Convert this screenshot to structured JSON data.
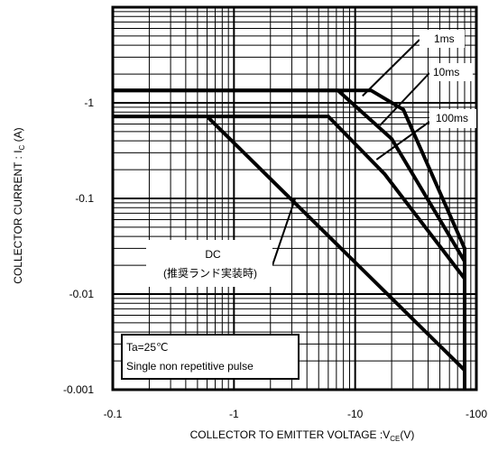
{
  "chart_data": {
    "type": "line",
    "x_scale": "log",
    "y_scale": "log",
    "xlim": [
      -0.1,
      -100
    ],
    "ylim": [
      -0.001,
      -10
    ],
    "x_ticks": [
      -0.1,
      -1,
      -10,
      -100
    ],
    "x_tick_labels": [
      "-0.1",
      "-1",
      "-10",
      "-100"
    ],
    "y_ticks": [
      -0.001,
      -0.01,
      -0.1,
      -1
    ],
    "y_tick_labels": [
      "-0.001",
      "-0.01",
      "-0.1",
      "-1"
    ],
    "xlabel_main": "COLLECTOR TO EMITTER VOLTAGE :V",
    "xlabel_sub": "CE",
    "xlabel_tail": "(V)",
    "ylabel_main": "COLLECTOR CURRENT : I",
    "ylabel_sub": "C",
    "ylabel_tail": " (A)",
    "grid": true,
    "series": [
      {
        "name": "1ms",
        "points": [
          [
            -0.1,
            -1.35
          ],
          [
            -13.5,
            -1.35
          ],
          [
            -25,
            -0.85
          ],
          [
            -80,
            -0.03
          ],
          [
            -80,
            -0.001
          ]
        ]
      },
      {
        "name": "10ms",
        "points": [
          [
            -0.1,
            -1.35
          ],
          [
            -7.2,
            -1.35
          ],
          [
            -20,
            -0.42
          ],
          [
            -80,
            -0.022
          ]
        ]
      },
      {
        "name": "100ms",
        "points": [
          [
            -0.1,
            -0.72
          ],
          [
            -6.0,
            -0.72
          ],
          [
            -17.5,
            -0.18
          ],
          [
            -80,
            -0.0145
          ]
        ]
      },
      {
        "name": "DC\n(推奨ランド実装時)",
        "points": [
          [
            -0.6,
            -0.72
          ],
          [
            -80,
            -0.0016
          ]
        ]
      }
    ],
    "annotations": [
      {
        "text": "1ms",
        "pointer_to": [
          -11.5,
          -1.18
        ]
      },
      {
        "text": "10ms",
        "pointer_to": [
          -16.0,
          -0.58
        ]
      },
      {
        "text": "100ms",
        "pointer_to": [
          -15.0,
          -0.255
        ]
      },
      {
        "text": "DC",
        "text2": "(推奨ランド実装時)",
        "pointer_to": [
          -3.2,
          -0.1
        ]
      }
    ],
    "note_lines": [
      "Ta=25℃",
      "Single non repetitive pulse"
    ]
  }
}
